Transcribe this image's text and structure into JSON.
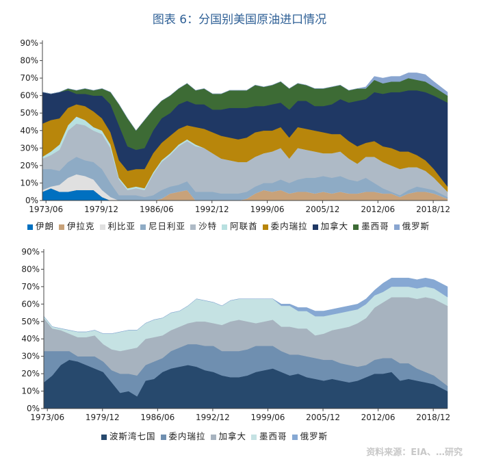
{
  "title": "图表 6：分国别美国原油进口情况",
  "watermark": "资料来源：EIA、…研究",
  "chart_data": [
    {
      "type": "area",
      "stacked": true,
      "ylim": [
        0,
        90
      ],
      "yticks": [
        "0%",
        "10%",
        "20%",
        "30%",
        "40%",
        "50%",
        "60%",
        "70%",
        "80%",
        "90%"
      ],
      "x_range": [
        1973.0,
        2020.6
      ],
      "xtick_labels": [
        "1973/06",
        "1979/12",
        "1986/06",
        "1992/12",
        "1999/06",
        "2005/12",
        "2012/06",
        "2018/12"
      ],
      "xtick_positions": [
        1973.42,
        1979.92,
        1986.42,
        1992.92,
        1999.42,
        2005.92,
        2012.42,
        2018.92
      ],
      "legend_position": "bottom",
      "x": [
        1973,
        1974,
        1975,
        1976,
        1977,
        1978,
        1979,
        1980,
        1981,
        1982,
        1983,
        1984,
        1985,
        1986,
        1987,
        1988,
        1989,
        1990,
        1991,
        1992,
        1993,
        1994,
        1995,
        1996,
        1997,
        1998,
        1999,
        2000,
        2001,
        2002,
        2003,
        2004,
        2005,
        2006,
        2007,
        2008,
        2009,
        2010,
        2011,
        2012,
        2013,
        2014,
        2015,
        2016,
        2017,
        2018,
        2019,
        2020.6
      ],
      "series": [
        {
          "name": "伊朗",
          "color": "#0070c0",
          "values": [
            5,
            7,
            5,
            5,
            6,
            6,
            6,
            2,
            0,
            0,
            0,
            0,
            0,
            0,
            0,
            0,
            0,
            0,
            0,
            0,
            0,
            0,
            0,
            0,
            0,
            0,
            0,
            0,
            0,
            0,
            0,
            0,
            0,
            0,
            0,
            0,
            0,
            0,
            0,
            0,
            0,
            0,
            0,
            0,
            0,
            0,
            0,
            0
          ]
        },
        {
          "name": "伊拉克",
          "color": "#c8a27a",
          "values": [
            0,
            0,
            0,
            0,
            0,
            0,
            0,
            0,
            0,
            0,
            0,
            0,
            0,
            0,
            1,
            4,
            5,
            6,
            0,
            0,
            0,
            0,
            0,
            0,
            1,
            4,
            6,
            5,
            6,
            4,
            5,
            5,
            4,
            5,
            4,
            5,
            4,
            4,
            5,
            5,
            4,
            4,
            2,
            4,
            5,
            5,
            4,
            1
          ]
        },
        {
          "name": "利比亚",
          "color": "#e0e0e0",
          "values": [
            1,
            1,
            4,
            8,
            9,
            8,
            6,
            4,
            2,
            0,
            0,
            0,
            0,
            0,
            0,
            0,
            0,
            0,
            0,
            0,
            0,
            0,
            0,
            0,
            0,
            0,
            0,
            0,
            0,
            0,
            0,
            0,
            0,
            0,
            0,
            0,
            0,
            0,
            0,
            0,
            0,
            0,
            0,
            0,
            0,
            0,
            0,
            0
          ]
        },
        {
          "name": "尼日利亚",
          "color": "#8eabc5",
          "values": [
            12,
            10,
            8,
            9,
            10,
            9,
            10,
            12,
            8,
            3,
            3,
            3,
            2,
            3,
            5,
            4,
            4,
            5,
            5,
            5,
            5,
            4,
            4,
            4,
            4,
            4,
            4,
            5,
            6,
            6,
            7,
            8,
            9,
            9,
            9,
            9,
            8,
            7,
            8,
            5,
            3,
            1,
            1,
            2,
            3,
            2,
            2,
            1
          ]
        },
        {
          "name": "沙特",
          "color": "#aebac6",
          "values": [
            6,
            8,
            12,
            18,
            19,
            20,
            18,
            20,
            20,
            9,
            3,
            4,
            4,
            12,
            16,
            18,
            22,
            23,
            26,
            25,
            22,
            20,
            19,
            18,
            17,
            17,
            17,
            18,
            18,
            14,
            18,
            16,
            15,
            13,
            14,
            14,
            12,
            10,
            12,
            15,
            15,
            15,
            15,
            13,
            11,
            10,
            7,
            3
          ]
        },
        {
          "name": "阿联酋",
          "color": "#b8e0e0",
          "values": [
            1,
            2,
            3,
            3,
            4,
            3,
            2,
            2,
            2,
            1,
            1,
            1,
            1,
            1,
            1,
            1,
            1,
            1,
            1,
            0,
            0,
            0,
            0,
            0,
            0,
            0,
            0,
            0,
            0,
            0,
            0,
            0,
            0,
            0,
            0,
            0,
            0,
            0,
            0,
            0,
            0,
            0,
            0,
            0,
            0,
            0,
            0,
            0
          ]
        },
        {
          "name": "委内瑞拉",
          "color": "#b8860b",
          "values": [
            19,
            18,
            15,
            10,
            7,
            8,
            9,
            7,
            7,
            10,
            10,
            10,
            11,
            11,
            10,
            10,
            9,
            8,
            10,
            11,
            12,
            13,
            13,
            13,
            14,
            14,
            13,
            12,
            12,
            12,
            12,
            12,
            12,
            12,
            11,
            10,
            10,
            10,
            8,
            9,
            9,
            10,
            10,
            9,
            7,
            6,
            5,
            3
          ]
        },
        {
          "name": "加拿大",
          "color": "#1f3864",
          "values": [
            18,
            15,
            15,
            10,
            6,
            7,
            9,
            13,
            16,
            20,
            14,
            11,
            12,
            13,
            14,
            13,
            14,
            14,
            13,
            14,
            13,
            15,
            17,
            18,
            17,
            15,
            14,
            15,
            14,
            16,
            15,
            16,
            14,
            15,
            17,
            20,
            22,
            26,
            25,
            28,
            30,
            32,
            34,
            35,
            37,
            39,
            42,
            48
          ]
        },
        {
          "name": "墨西哥",
          "color": "#3d6b35",
          "values": [
            0,
            0,
            0,
            1,
            2,
            3,
            3,
            4,
            7,
            12,
            16,
            11,
            16,
            12,
            10,
            10,
            9,
            10,
            8,
            9,
            9,
            9,
            10,
            10,
            10,
            12,
            11,
            11,
            12,
            12,
            10,
            9,
            10,
            10,
            10,
            8,
            7,
            7,
            6,
            7,
            6,
            6,
            6,
            7,
            6,
            6,
            5,
            4
          ]
        },
        {
          "name": "俄罗斯",
          "color": "#89a5d0",
          "values": [
            0,
            0,
            0,
            0,
            0,
            0,
            0,
            0,
            0,
            0,
            0,
            0,
            0,
            0,
            0,
            0,
            0,
            0,
            0,
            0,
            0,
            0,
            0,
            0,
            0,
            0,
            0,
            0,
            0,
            0,
            0,
            0,
            0,
            0,
            0,
            0,
            0,
            0,
            1,
            2,
            3,
            3,
            3,
            3,
            4,
            4,
            3,
            2
          ]
        }
      ]
    },
    {
      "type": "area",
      "stacked": true,
      "ylim": [
        0,
        90
      ],
      "yticks": [
        "0%",
        "10%",
        "20%",
        "30%",
        "40%",
        "50%",
        "60%",
        "70%",
        "80%",
        "90%"
      ],
      "x_range": [
        1973.0,
        2020.6
      ],
      "xtick_labels": [
        "1973/06",
        "1979/12",
        "1986/06",
        "1992/12",
        "1999/06",
        "2005/12",
        "2012/06",
        "2018/12"
      ],
      "xtick_positions": [
        1973.42,
        1979.92,
        1986.42,
        1992.92,
        1999.42,
        2005.92,
        2012.42,
        2018.92
      ],
      "legend_position": "bottom",
      "x": [
        1973,
        1974,
        1975,
        1976,
        1977,
        1978,
        1979,
        1980,
        1981,
        1982,
        1983,
        1984,
        1985,
        1986,
        1987,
        1988,
        1989,
        1990,
        1991,
        1992,
        1993,
        1994,
        1995,
        1996,
        1997,
        1998,
        1999,
        2000,
        2001,
        2002,
        2003,
        2004,
        2005,
        2006,
        2007,
        2008,
        2009,
        2010,
        2011,
        2012,
        2013,
        2014,
        2015,
        2016,
        2017,
        2018,
        2019,
        2020.6
      ],
      "series": [
        {
          "name": "波斯湾七国",
          "color": "#27496d",
          "values": [
            15,
            19,
            25,
            28,
            27,
            25,
            23,
            21,
            15,
            9,
            10,
            7,
            16,
            17,
            21,
            23,
            24,
            25,
            24,
            22,
            21,
            19,
            18,
            18,
            19,
            21,
            22,
            23,
            21,
            19,
            20,
            18,
            17,
            16,
            17,
            16,
            15,
            16,
            18,
            20,
            20,
            21,
            16,
            17,
            16,
            15,
            14,
            10
          ]
        },
        {
          "name": "委内瑞拉",
          "color": "#6f8fb0",
          "values": [
            18,
            14,
            8,
            5,
            3,
            5,
            7,
            6,
            7,
            11,
            10,
            12,
            9,
            10,
            8,
            10,
            11,
            12,
            13,
            14,
            15,
            14,
            15,
            15,
            15,
            15,
            14,
            13,
            12,
            12,
            11,
            12,
            12,
            12,
            11,
            10,
            10,
            8,
            7,
            8,
            9,
            8,
            10,
            9,
            7,
            6,
            5,
            3
          ]
        },
        {
          "name": "加拿大",
          "color": "#a7b3bf",
          "values": [
            19,
            13,
            12,
            10,
            11,
            11,
            12,
            10,
            12,
            13,
            14,
            16,
            15,
            14,
            13,
            12,
            12,
            12,
            13,
            14,
            13,
            15,
            17,
            18,
            16,
            13,
            14,
            15,
            14,
            16,
            15,
            16,
            13,
            15,
            17,
            20,
            22,
            25,
            27,
            30,
            32,
            35,
            38,
            38,
            40,
            43,
            44,
            46
          ]
        },
        {
          "name": "墨西哥",
          "color": "#c5e2e3",
          "values": [
            1,
            1,
            1,
            2,
            3,
            3,
            3,
            6,
            9,
            11,
            11,
            10,
            9,
            10,
            10,
            10,
            9,
            10,
            13,
            12,
            12,
            11,
            12,
            12,
            13,
            14,
            13,
            12,
            12,
            12,
            10,
            10,
            11,
            10,
            9,
            9,
            9,
            8,
            8,
            7,
            6,
            6,
            6,
            6,
            6,
            6,
            6,
            5
          ]
        },
        {
          "name": "俄罗斯",
          "color": "#86a8d3",
          "values": [
            0,
            0,
            0,
            0,
            0,
            0,
            0,
            0,
            0,
            0,
            0,
            0,
            0,
            0,
            0,
            0,
            0,
            0,
            0,
            0,
            0,
            0,
            0,
            0,
            0,
            0,
            0,
            0,
            1,
            1,
            2,
            2,
            3,
            3,
            3,
            3,
            3,
            3,
            3,
            3,
            5,
            5,
            5,
            5,
            5,
            5,
            5,
            6
          ]
        }
      ]
    }
  ]
}
